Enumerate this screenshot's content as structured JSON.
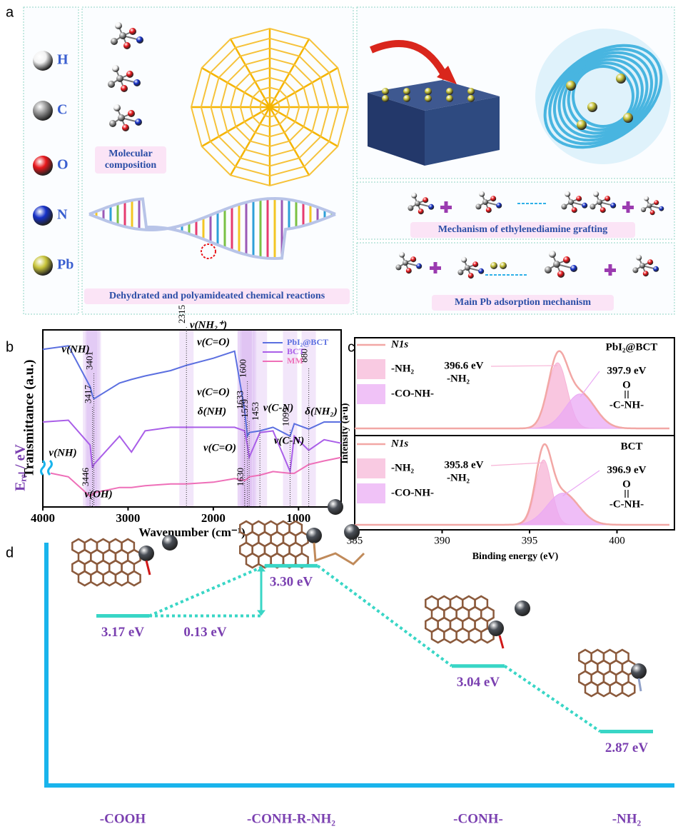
{
  "panel_labels": [
    "a",
    "b",
    "c",
    "d"
  ],
  "diagram": {
    "atoms": [
      {
        "symbol": "H",
        "color": "#f2f2f2"
      },
      {
        "symbol": "C",
        "color": "#9a9a9a"
      },
      {
        "symbol": "O",
        "color": "#e8161b"
      },
      {
        "symbol": "N",
        "color": "#1530c8"
      },
      {
        "symbol": "Pb",
        "color": "#c8c43a"
      }
    ],
    "captions": [
      "Molecular composition",
      "Dehydrated and polyamideated chemical reactions",
      "Mechanism of ethylenediamine grafting",
      "Main Pb adsorption mechanism"
    ]
  },
  "chart_data": [
    {
      "type": "line",
      "xlabel": "Wavenumber (cm⁻¹)",
      "ylabel": "Transmittance (a.u.)",
      "xlim": [
        4000,
        500
      ],
      "xticks": [
        4000,
        3000,
        2000,
        1000
      ],
      "ylim": [
        0,
        100
      ],
      "legend": "top-right",
      "x": [
        4000,
        3700,
        3446,
        3417,
        3401,
        3100,
        2960,
        2800,
        2500,
        2315,
        2000,
        1750,
        1633,
        1600,
        1579,
        1453,
        1300,
        1099,
        1050,
        880,
        700,
        500
      ],
      "series": [
        {
          "name": "PbI₂@BCT",
          "color": "#5b6fe0",
          "values": [
            89,
            91,
            68,
            63,
            61,
            70,
            72,
            74,
            77,
            80,
            84,
            88,
            55,
            40,
            42,
            43,
            45,
            40,
            47,
            44,
            48,
            48
          ]
        },
        {
          "name": "BCT",
          "color": "#a95ee8",
          "values": [
            48,
            49,
            35,
            22,
            24,
            40,
            31,
            43,
            45,
            45,
            45,
            45,
            43,
            35,
            28,
            42,
            43,
            20,
            40,
            32,
            38,
            36
          ]
        },
        {
          "name": "MM",
          "color": "#ee6fb8",
          "values": [
            20,
            17,
            6,
            7,
            8,
            11,
            11,
            12,
            13,
            13,
            14,
            16,
            15,
            16,
            17,
            18,
            20,
            19,
            19,
            24,
            26,
            28
          ]
        }
      ],
      "peaks": [
        3401,
        3417,
        3446,
        2315,
        1633,
        1630,
        1600,
        1579,
        1453,
        1099,
        880
      ],
      "annotations": [
        "ν(NH)",
        "ν(NH₂⁺)",
        "ν(C=O)",
        "ν(C=O)",
        "δ(NH)",
        "ν(C-N)",
        "δ(NH₂)",
        "ν(NH)",
        "ν(C-N)",
        "ν(C=O)",
        "ν(OH)"
      ]
    },
    {
      "type": "xps",
      "xlabel": "Binding energy (eV)",
      "ylabel": "Intensity (a·u)",
      "xlim": [
        385,
        403
      ],
      "xticks": [
        385,
        390,
        395,
        400
      ],
      "ylim": [
        0,
        1
      ],
      "envelope": "N1s",
      "envelope_color": "#f2a7a5",
      "panels": [
        {
          "sample": "PbI₂@BCT",
          "components": [
            {
              "name": "-NH₂",
              "color": "#f7b3d6",
              "center": 396.6,
              "label": "396.6 eV",
              "height": 0.8,
              "width": 0.55,
              "note": [
                "-NH₂"
              ]
            },
            {
              "name": "-CO-NH-",
              "color": "#eaa8f4",
              "center": 397.9,
              "label": "397.9 eV",
              "height": 0.42,
              "width": 0.85,
              "note": [
                "O",
                "-C-NH-"
              ]
            }
          ]
        },
        {
          "sample": "BCT",
          "components": [
            {
              "name": "-NH₂",
              "color": "#f7b3d6",
              "center": 395.8,
              "label": "395.8 eV",
              "height": 0.82,
              "width": 0.45,
              "note": [
                "-NH₂"
              ]
            },
            {
              "name": "-CO-NH-",
              "color": "#eaa8f4",
              "center": 396.9,
              "label": "396.9 eV",
              "height": 0.4,
              "width": 0.9,
              "note": [
                "O",
                "-C-NH-"
              ]
            }
          ]
        }
      ]
    },
    {
      "type": "energy",
      "ylabel": "Eᵣₑₗ / eV",
      "ylim": [
        2.73,
        3.36
      ],
      "categories": [
        "-COOH",
        "-CONH-R-NH₂",
        "-CONH-",
        "-NH₂"
      ],
      "values": [
        3.17,
        3.3,
        3.04,
        2.87
      ],
      "value_labels": [
        "3.17 eV",
        "3.30 eV",
        "3.04 eV",
        "2.87 eV"
      ],
      "barrier": 0.13,
      "barrier_label": "0.13 eV",
      "level_color": "#39d6c6",
      "label_color": "#7a3fb0",
      "axis_color": "#19b4ec"
    }
  ]
}
